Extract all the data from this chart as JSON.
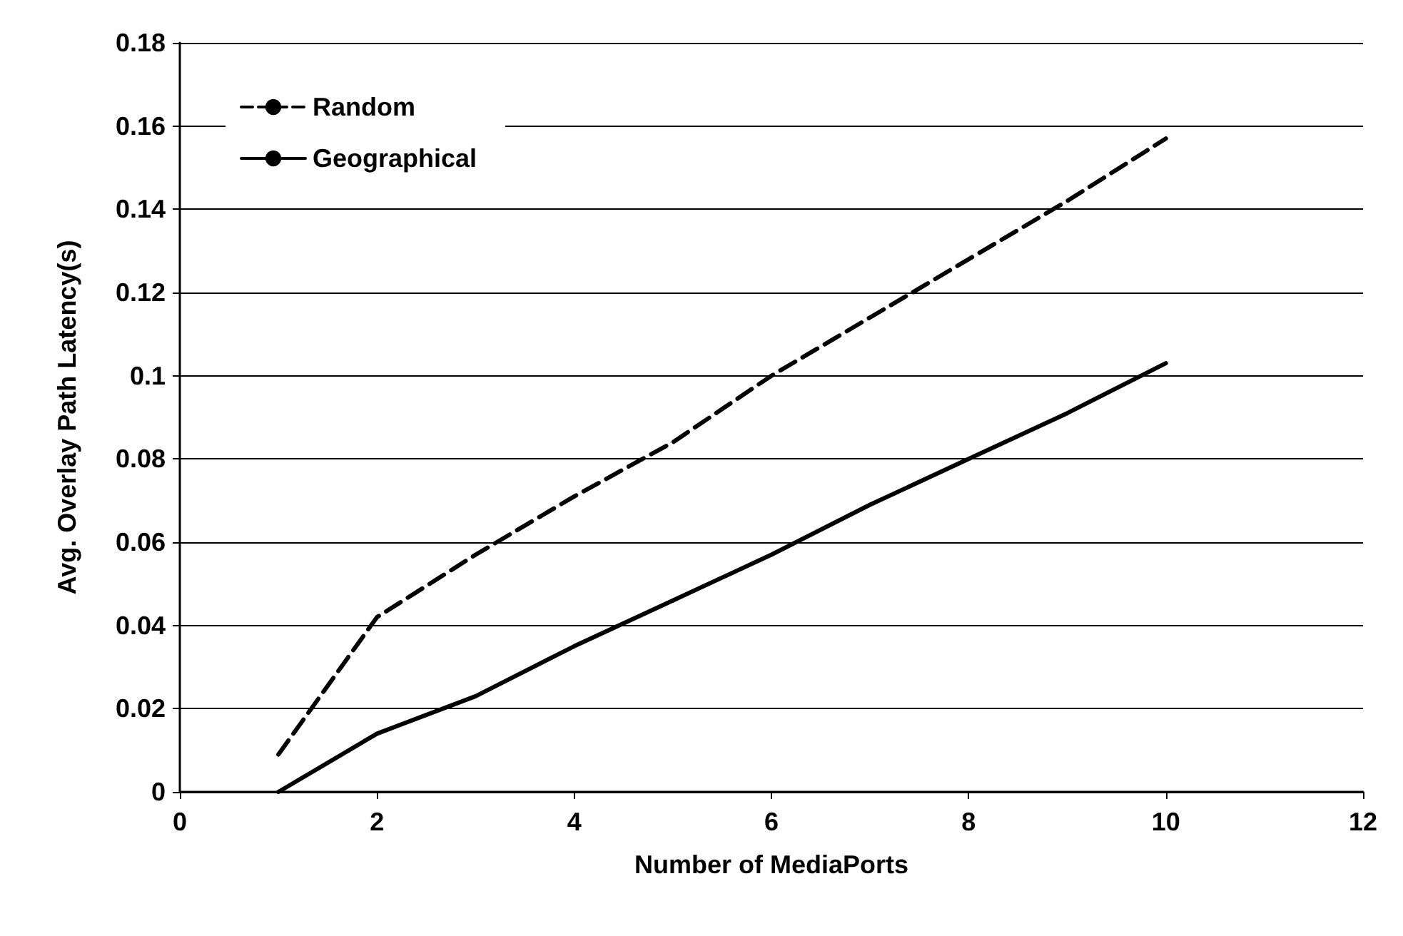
{
  "chart_data": {
    "type": "line",
    "xlabel": "Number of MediaPorts",
    "ylabel": "Avg. Overlay Path Latency(s)",
    "x": [
      1,
      2,
      3,
      4,
      5,
      6,
      7,
      8,
      9,
      10
    ],
    "series": [
      {
        "name": "Random",
        "color": "#000000",
        "line_style": "dashed",
        "values": [
          0.009,
          0.042,
          0.057,
          0.071,
          0.084,
          0.1,
          0.114,
          0.128,
          0.142,
          0.157
        ]
      },
      {
        "name": "Geographical",
        "color": "#000000",
        "line_style": "solid",
        "values": [
          0,
          0.014,
          0.023,
          0.035,
          0.046,
          0.057,
          0.069,
          0.08,
          0.091,
          0.103
        ]
      }
    ],
    "xlim": [
      0,
      12
    ],
    "xticks": [
      0,
      2,
      4,
      6,
      8,
      10,
      12
    ],
    "ylim": [
      0,
      0.18
    ],
    "yticks": [
      0,
      0.02,
      0.04,
      0.06,
      0.08,
      0.1,
      0.12,
      0.14,
      0.16,
      0.18
    ],
    "grid": "y",
    "legend": "top left",
    "marker": "none"
  }
}
